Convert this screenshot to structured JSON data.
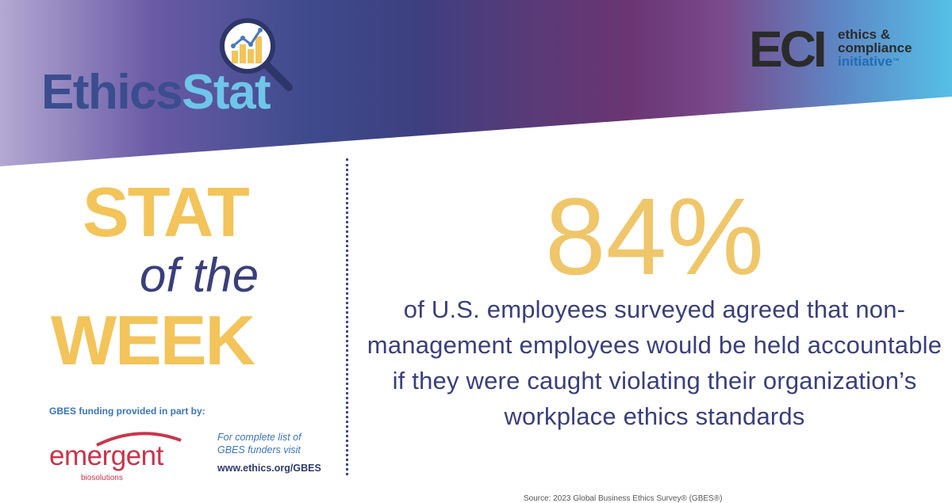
{
  "header": {
    "logo_part1": "Ethics",
    "logo_part2": "Stat",
    "eci_mark": "ECI",
    "eci_line1": "ethics &",
    "eci_line2": "compliance",
    "eci_line3": "initiative",
    "eci_tm": "™"
  },
  "headline": {
    "stat": "STAT",
    "of_the": "of the",
    "week": "WEEK"
  },
  "funding": {
    "label": "GBES funding provided in part by:",
    "sponsor_name": "emergent",
    "sponsor_sub": "biosolutions",
    "funders_line1": "For complete list of",
    "funders_line2": "GBES funders visit",
    "url": "www.ethics.org/GBES"
  },
  "main": {
    "percent": "84%",
    "statement": "of U.S. employees surveyed agreed that non-management employees would be held accountable if they were caught violating their organization’s workplace ethics standards"
  },
  "footer": {
    "source": "Source: 2023 Global Business Ethics Survey® (GBES®)"
  },
  "colors": {
    "gold": "#f2c45a",
    "navy": "#3a3f7a",
    "blue": "#3b74b5",
    "red": "#c8354b"
  }
}
